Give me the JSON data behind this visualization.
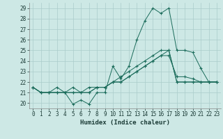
{
  "xlabel": "Humidex (Indice chaleur)",
  "ylabel": "",
  "background_color": "#cde8e5",
  "grid_color": "#aaccca",
  "line_color": "#1a6b5a",
  "xlim": [
    -0.5,
    23.5
  ],
  "ylim": [
    19.5,
    29.5
  ],
  "yticks": [
    20,
    21,
    22,
    23,
    24,
    25,
    26,
    27,
    28,
    29
  ],
  "xticks": [
    0,
    1,
    2,
    3,
    4,
    5,
    6,
    7,
    8,
    9,
    10,
    11,
    12,
    13,
    14,
    15,
    16,
    17,
    18,
    19,
    20,
    21,
    22,
    23
  ],
  "series": {
    "line1": [
      21.5,
      21.0,
      21.0,
      21.0,
      21.0,
      19.9,
      20.3,
      19.9,
      21.0,
      21.0,
      23.5,
      22.3,
      23.5,
      26.0,
      27.8,
      29.0,
      28.5,
      29.0,
      25.0,
      25.0,
      24.8,
      23.3,
      22.0,
      22.0
    ],
    "line2": [
      21.5,
      21.0,
      21.0,
      21.0,
      21.0,
      21.0,
      21.0,
      21.0,
      21.5,
      21.5,
      22.0,
      22.0,
      22.5,
      23.0,
      23.5,
      24.0,
      24.5,
      25.0,
      22.0,
      22.0,
      22.0,
      22.0,
      22.0,
      22.0
    ],
    "line3": [
      21.5,
      21.0,
      21.0,
      21.0,
      21.0,
      21.0,
      21.0,
      21.0,
      21.5,
      21.5,
      22.0,
      22.0,
      22.5,
      23.0,
      23.5,
      24.0,
      24.5,
      24.5,
      22.5,
      22.5,
      22.3,
      22.0,
      22.0,
      22.0
    ],
    "line4": [
      21.5,
      21.0,
      21.0,
      21.5,
      21.0,
      21.5,
      21.0,
      21.5,
      21.5,
      21.5,
      22.0,
      22.5,
      23.0,
      23.5,
      24.0,
      24.5,
      25.0,
      25.0,
      22.0,
      22.0,
      22.0,
      22.0,
      22.0,
      22.0
    ]
  },
  "font_family": "monospace",
  "tick_fontsize": 5.5,
  "xlabel_fontsize": 6.5
}
